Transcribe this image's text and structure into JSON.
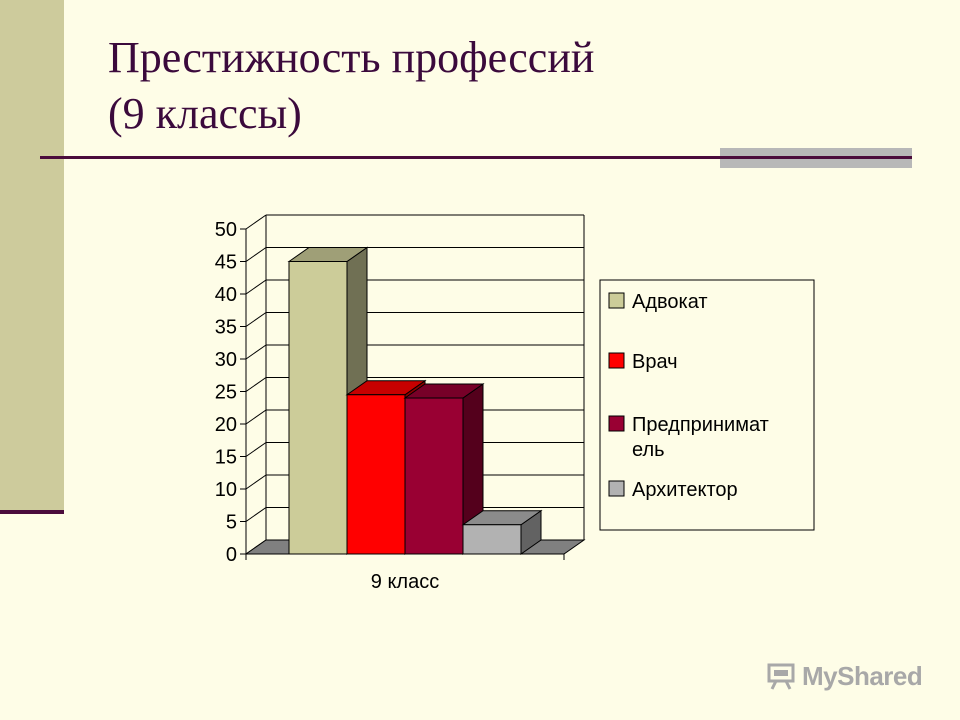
{
  "slide": {
    "title_line1": "Престижность профессий",
    "title_line2": "(9 классы)",
    "logo_text": "MyShared"
  },
  "colors": {
    "background": "#fefde7",
    "sidebar": "#cdcb9c",
    "title": "#3b0a3c",
    "rule": "#4b0c3c",
    "accent": "#b8b8b8"
  },
  "chart_data": {
    "type": "bar",
    "title": "",
    "xlabel": "",
    "ylabel": "",
    "categories": [
      "9 класс"
    ],
    "ylim": [
      0,
      50
    ],
    "yticks": [
      0,
      5,
      10,
      15,
      20,
      25,
      30,
      35,
      40,
      45,
      50
    ],
    "grid": true,
    "legend_position": "right",
    "three_d": true,
    "series": [
      {
        "name": "Адвокат",
        "values": [
          45
        ],
        "color": "#cccc99"
      },
      {
        "name": "Врач",
        "values": [
          24.5
        ],
        "color": "#ff0000"
      },
      {
        "name": "Предприниматель",
        "legend_lines": [
          "Предпринимат",
          "ель"
        ],
        "values": [
          24
        ],
        "color": "#990033"
      },
      {
        "name": "Архитектор",
        "values": [
          4.5
        ],
        "color": "#b2b2b2"
      }
    ]
  }
}
